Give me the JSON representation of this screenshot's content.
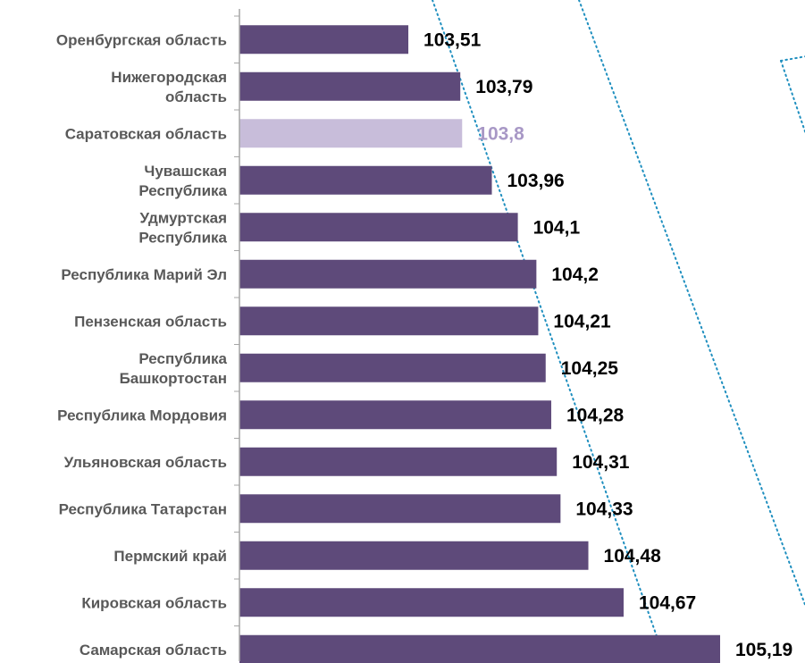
{
  "chart_data": {
    "type": "bar",
    "orientation": "horizontal",
    "categories": [
      "Оренбургская область",
      "Нижегородская область",
      "Саратовская область",
      "Чувашская Республика",
      "Удмуртская Республика",
      "Республика Марий Эл",
      "Пензенская область",
      "Республика Башкортостан",
      "Республика Мордовия",
      "Ульяновская область",
      "Республика Татарстан",
      "Пермский край",
      "Кировская область",
      "Самарская область"
    ],
    "category_lines": [
      [
        "Оренбургская область"
      ],
      [
        "Нижегородская",
        "область"
      ],
      [
        "Саратовская область"
      ],
      [
        "Чувашская",
        "Республика"
      ],
      [
        "Удмуртская",
        "Республика"
      ],
      [
        "Республика Марий Эл"
      ],
      [
        "Пензенская область"
      ],
      [
        "Республика",
        "Башкортостан"
      ],
      [
        "Республика Мордовия"
      ],
      [
        "Ульяновская область"
      ],
      [
        "Республика Татарстан"
      ],
      [
        "Пермский край"
      ],
      [
        "Кировская область"
      ],
      [
        "Самарская область"
      ]
    ],
    "values": [
      103.51,
      103.79,
      103.8,
      103.96,
      104.1,
      104.2,
      104.21,
      104.25,
      104.28,
      104.31,
      104.33,
      104.48,
      104.67,
      105.19
    ],
    "value_labels": [
      "103,51",
      "103,79",
      "103,8",
      "103,96",
      "104,1",
      "104,2",
      "104,21",
      "104,25",
      "104,28",
      "104,31",
      "104,33",
      "104,48",
      "104,67",
      "105,19"
    ],
    "highlight_index": 2,
    "xlim": [
      102.6,
      105.19
    ],
    "colors": {
      "bar": "#5e4a7a",
      "bar_highlight": "#c8bdda",
      "label_highlight": "#a898c6",
      "value_text": "#000000",
      "category_text": "#595959",
      "axis": "#a6a6a6",
      "dotted_line": "#1f8fbf"
    }
  }
}
